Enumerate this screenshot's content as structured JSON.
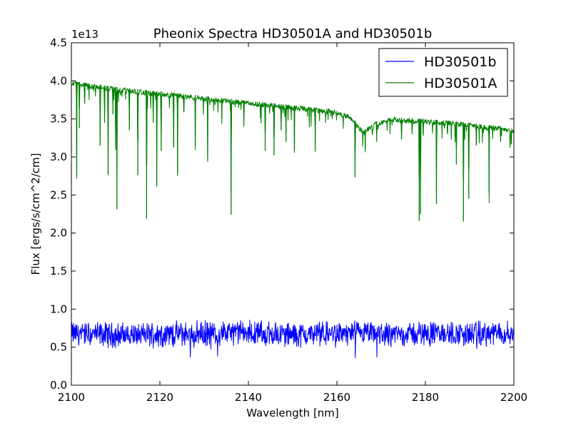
{
  "chart_data": {
    "type": "line",
    "title": "Pheonix Spectra HD30501A and HD30501b",
    "xlabel": "Wavelength [nm]",
    "ylabel": "Flux [ergs/s/cm^2/cm]",
    "y_offset_label": "1e13",
    "xlim": [
      2100,
      2200
    ],
    "ylim": [
      0,
      4.5
    ],
    "x_ticks": [
      2100,
      2120,
      2140,
      2160,
      2180,
      2200
    ],
    "y_ticks": [
      0.0,
      0.5,
      1.0,
      1.5,
      2.0,
      2.5,
      3.0,
      3.5,
      4.0,
      4.5
    ],
    "x_tick_labels": [
      "2100",
      "2120",
      "2140",
      "2160",
      "2180",
      "2200"
    ],
    "y_tick_labels": [
      "0.0",
      "0.5",
      "1.0",
      "1.5",
      "2.0",
      "2.5",
      "3.0",
      "3.5",
      "4.0",
      "4.5"
    ],
    "grid": false,
    "legend_position": "top-right",
    "series": [
      {
        "name": "HD30501b",
        "color": "#0000ff",
        "x": [
          2100,
          2110,
          2120,
          2130,
          2140,
          2150,
          2160,
          2170,
          2180,
          2190,
          2200
        ],
        "y": [
          0.68,
          0.66,
          0.67,
          0.68,
          0.69,
          0.66,
          0.68,
          0.67,
          0.68,
          0.67,
          0.68
        ],
        "noise_range": [
          0.25,
          0.88
        ]
      },
      {
        "name": "HD30501A",
        "color": "#008000",
        "x": [
          2100,
          2110,
          2120,
          2130,
          2140,
          2150,
          2160,
          2163,
          2166,
          2169,
          2172,
          2180,
          2190,
          2200
        ],
        "y": [
          4.0,
          3.92,
          3.86,
          3.8,
          3.74,
          3.68,
          3.62,
          3.55,
          3.35,
          3.47,
          3.52,
          3.5,
          3.45,
          3.38
        ],
        "absorption_lines": [
          {
            "x": 2101.2,
            "y": 2.76
          },
          {
            "x": 2101.8,
            "y": 3.38
          },
          {
            "x": 2103.0,
            "y": 3.7
          },
          {
            "x": 2106.5,
            "y": 3.15
          },
          {
            "x": 2107.5,
            "y": 3.45
          },
          {
            "x": 2108.3,
            "y": 2.76
          },
          {
            "x": 2109.4,
            "y": 3.56
          },
          {
            "x": 2110.0,
            "y": 3.12
          },
          {
            "x": 2110.3,
            "y": 2.31
          },
          {
            "x": 2113.1,
            "y": 3.35
          },
          {
            "x": 2115.0,
            "y": 2.76
          },
          {
            "x": 2117.0,
            "y": 2.19
          },
          {
            "x": 2118.5,
            "y": 3.45
          },
          {
            "x": 2119.3,
            "y": 2.61
          },
          {
            "x": 2120.3,
            "y": 3.08
          },
          {
            "x": 2123.1,
            "y": 3.13
          },
          {
            "x": 2124.0,
            "y": 2.79
          },
          {
            "x": 2125.4,
            "y": 3.6
          },
          {
            "x": 2128.0,
            "y": 3.15
          },
          {
            "x": 2130.8,
            "y": 2.97
          },
          {
            "x": 2134.0,
            "y": 3.5
          },
          {
            "x": 2136.1,
            "y": 2.24
          },
          {
            "x": 2139.0,
            "y": 3.55
          },
          {
            "x": 2143.8,
            "y": 3.08
          },
          {
            "x": 2145.8,
            "y": 3.02
          },
          {
            "x": 2147.4,
            "y": 3.35
          },
          {
            "x": 2148.5,
            "y": 3.2
          },
          {
            "x": 2150.4,
            "y": 3.09
          },
          {
            "x": 2155.1,
            "y": 3.07
          },
          {
            "x": 2158.0,
            "y": 3.5
          },
          {
            "x": 2164.1,
            "y": 2.73
          },
          {
            "x": 2166.4,
            "y": 3.1
          },
          {
            "x": 2169.0,
            "y": 3.2
          },
          {
            "x": 2174.6,
            "y": 3.23
          },
          {
            "x": 2177.0,
            "y": 3.3
          },
          {
            "x": 2178.6,
            "y": 2.16
          },
          {
            "x": 2178.9,
            "y": 2.25
          },
          {
            "x": 2179.5,
            "y": 3.3
          },
          {
            "x": 2182.5,
            "y": 2.38
          },
          {
            "x": 2185.0,
            "y": 3.3
          },
          {
            "x": 2187.0,
            "y": 2.9
          },
          {
            "x": 2188.6,
            "y": 2.15
          },
          {
            "x": 2189.8,
            "y": 2.45
          },
          {
            "x": 2191.5,
            "y": 3.15
          },
          {
            "x": 2194.4,
            "y": 2.53
          },
          {
            "x": 2197.0,
            "y": 3.2
          }
        ]
      }
    ]
  }
}
